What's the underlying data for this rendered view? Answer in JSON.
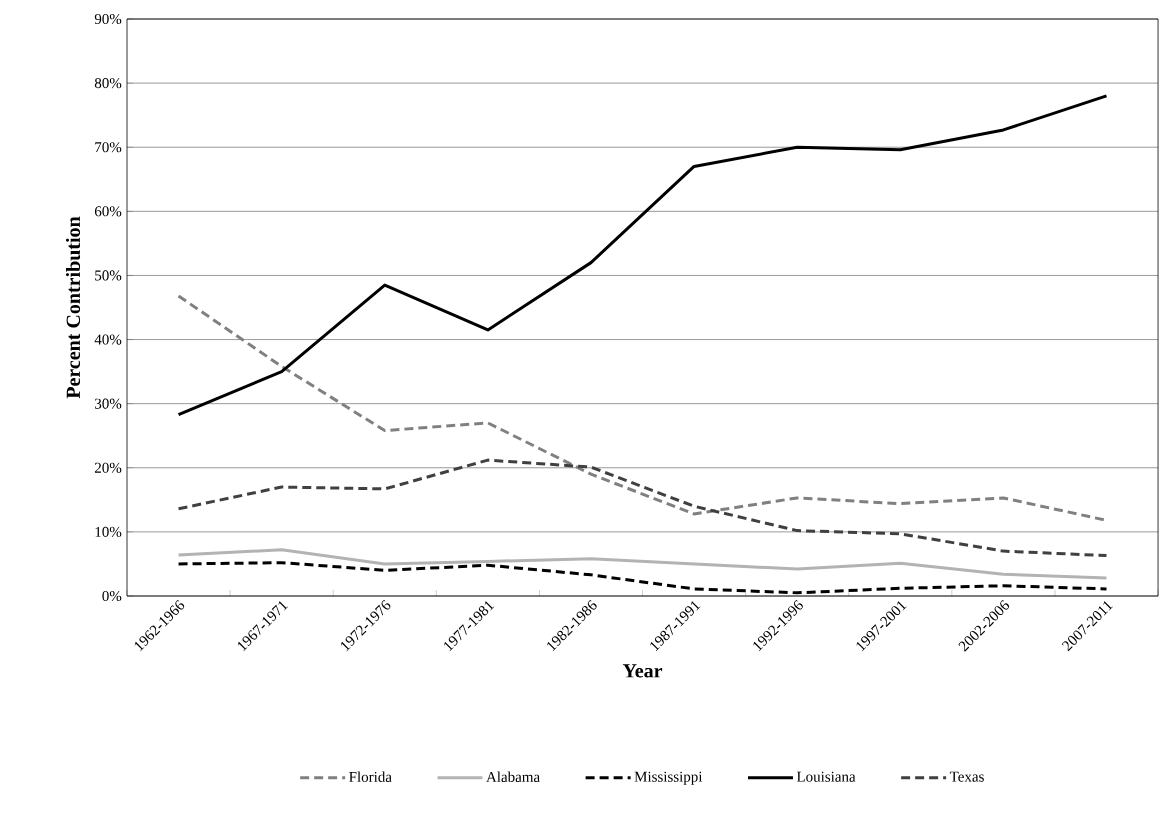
{
  "chart_data": {
    "type": "line",
    "xlabel": "Year",
    "ylabel": "Percent Contribution",
    "categories": [
      "1962-1966",
      "1967-1971",
      "1972-1976",
      "1977-1981",
      "1982-1986",
      "1987-1991",
      "1992-1996",
      "1997-2001",
      "2002-2006",
      "2007-2011"
    ],
    "series": [
      {
        "name": "Florida",
        "color": "#808080",
        "line_style": "dashed",
        "values": [
          46.8,
          35.8,
          25.8,
          27.0,
          19.0,
          12.8,
          15.3,
          14.4,
          15.3,
          11.8
        ]
      },
      {
        "name": "Alabama",
        "color": "#b3b3b3",
        "line_style": "solid",
        "values": [
          6.4,
          7.2,
          5.0,
          5.4,
          5.8,
          5.0,
          4.2,
          5.1,
          3.4,
          2.8
        ]
      },
      {
        "name": "Mississippi",
        "color": "#000000",
        "line_style": "dashed",
        "values": [
          5.0,
          5.2,
          4.0,
          4.8,
          3.3,
          1.1,
          0.5,
          1.2,
          1.6,
          1.1
        ]
      },
      {
        "name": "Louisiana",
        "color": "#000000",
        "line_style": "solid",
        "values": [
          28.3,
          35.0,
          48.5,
          41.5,
          52.0,
          67.0,
          70.0,
          69.6,
          72.7,
          78.0
        ]
      },
      {
        "name": "Texas",
        "color": "#404040",
        "line_style": "dashed",
        "values": [
          13.6,
          17.0,
          16.7,
          21.2,
          20.1,
          14.0,
          10.2,
          9.7,
          7.0,
          6.3
        ]
      }
    ],
    "ylim": [
      0,
      90
    ],
    "yticks": [
      {
        "value": 0,
        "label": "0%"
      },
      {
        "value": 10,
        "label": "10%"
      },
      {
        "value": 20,
        "label": "20%"
      },
      {
        "value": 30,
        "label": "30%"
      },
      {
        "value": 40,
        "label": "40%"
      },
      {
        "value": 50,
        "label": "50%"
      },
      {
        "value": 60,
        "label": "60%"
      },
      {
        "value": 70,
        "label": "70%"
      },
      {
        "value": 80,
        "label": "80%"
      },
      {
        "value": 90,
        "label": "90%"
      }
    ],
    "grid": "y",
    "legend": "bottom",
    "marker": "none"
  }
}
